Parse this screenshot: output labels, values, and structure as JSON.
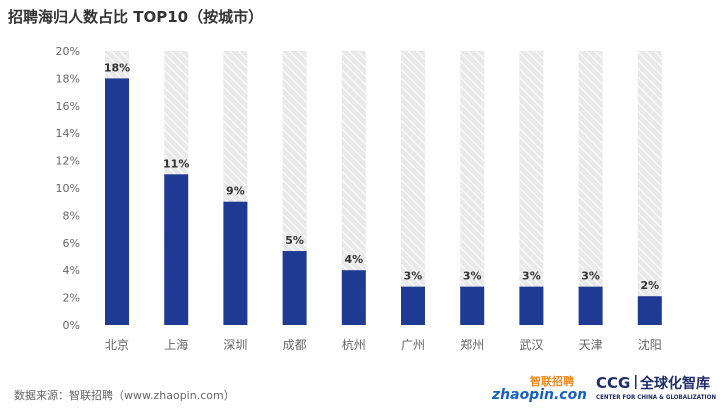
{
  "title": "招聘海归人数占比 TOP10（按城市）",
  "source": "数据来源：智联招聘（www.zhaopin.com）",
  "logos": {
    "zhaopin_cn": "智联招聘",
    "zhaopin_en": "zhaopin.com",
    "ccg_short": "CCG",
    "ccg_cn": "全球化智库",
    "ccg_en": "CENTER FOR CHINA & GLOBALIZATION"
  },
  "colors": {
    "bar": "#1f3a93",
    "track": "#e9e9e9",
    "hatch": "#ffffff",
    "axis_text": "#666666",
    "grid": "#dcdcdc",
    "label": "#333333",
    "zhaopin_blue": "#1a5fc4",
    "zhaopin_orange": "#f08a1c",
    "ccg": "#1f2d6b"
  },
  "chart_data": {
    "type": "bar",
    "title": "招聘海归人数占比 TOP10（按城市）",
    "categories": [
      "北京",
      "上海",
      "深圳",
      "成都",
      "杭州",
      "广州",
      "郑州",
      "武汉",
      "天津",
      "沈阳"
    ],
    "values": [
      18,
      11,
      9,
      5.4,
      4,
      2.8,
      2.8,
      2.8,
      2.8,
      2.1
    ],
    "data_labels": [
      "18%",
      "11%",
      "9%",
      "5%",
      "4%",
      "3%",
      "3%",
      "3%",
      "3%",
      "2%"
    ],
    "yticks": [
      "0%",
      "2%",
      "4%",
      "6%",
      "8%",
      "10%",
      "12%",
      "14%",
      "16%",
      "18%",
      "20%"
    ],
    "ylim": [
      0,
      20
    ],
    "y_unit": "%",
    "grid": false,
    "legend": "none"
  }
}
